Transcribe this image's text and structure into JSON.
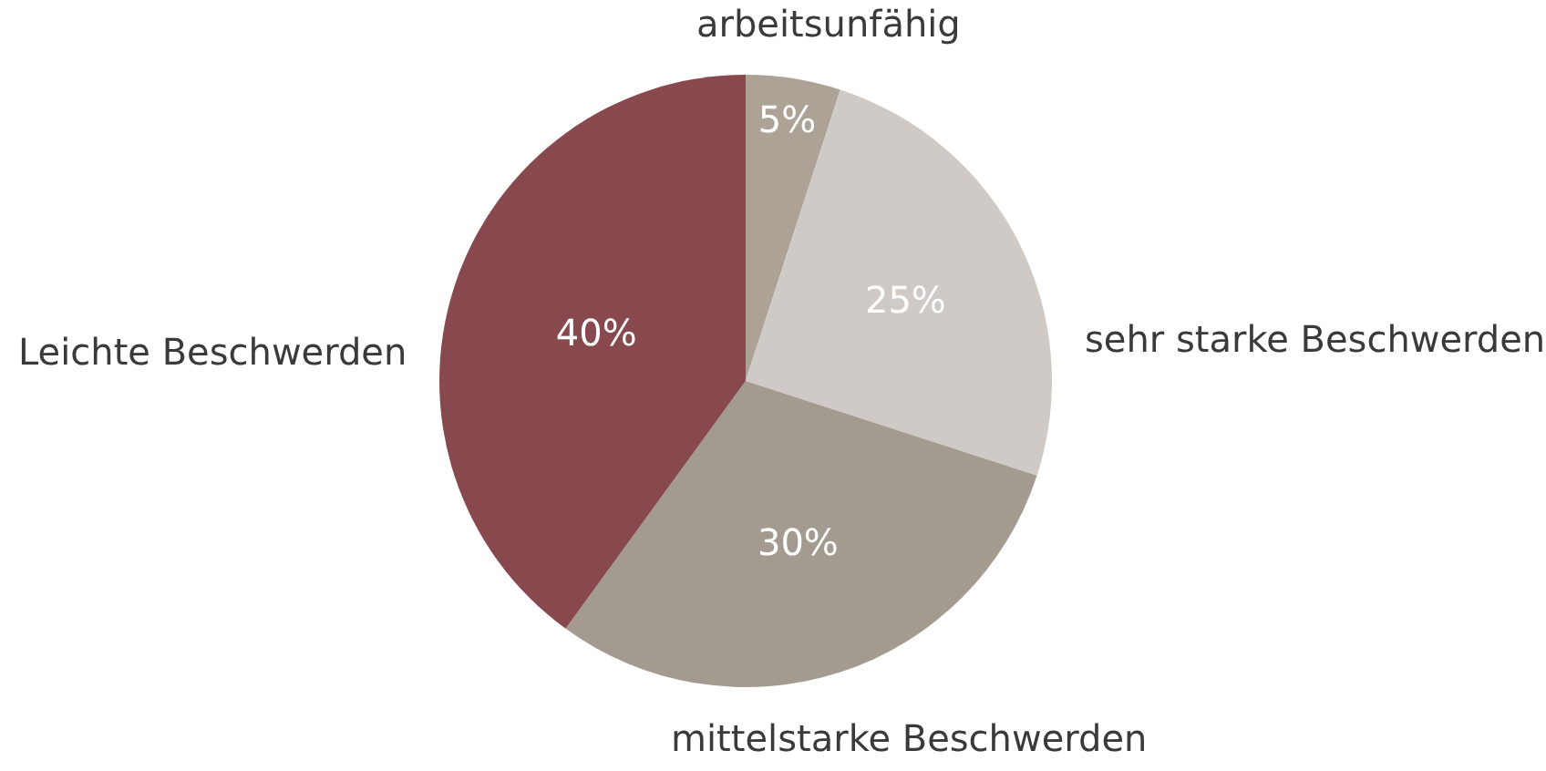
{
  "chart_data": {
    "type": "pie",
    "categories": [
      "arbeitsunfähig",
      "sehr starke Beschwerden",
      "mittelstarke Beschwerden",
      "Leichte Beschwerden"
    ],
    "values": [
      5,
      25,
      30,
      40
    ],
    "value_labels": [
      "5%",
      "25%",
      "30%",
      "40%"
    ],
    "colors": [
      "#aca296",
      "#cfcac5",
      "#a39b8f",
      "#87494e"
    ],
    "legend": false
  }
}
